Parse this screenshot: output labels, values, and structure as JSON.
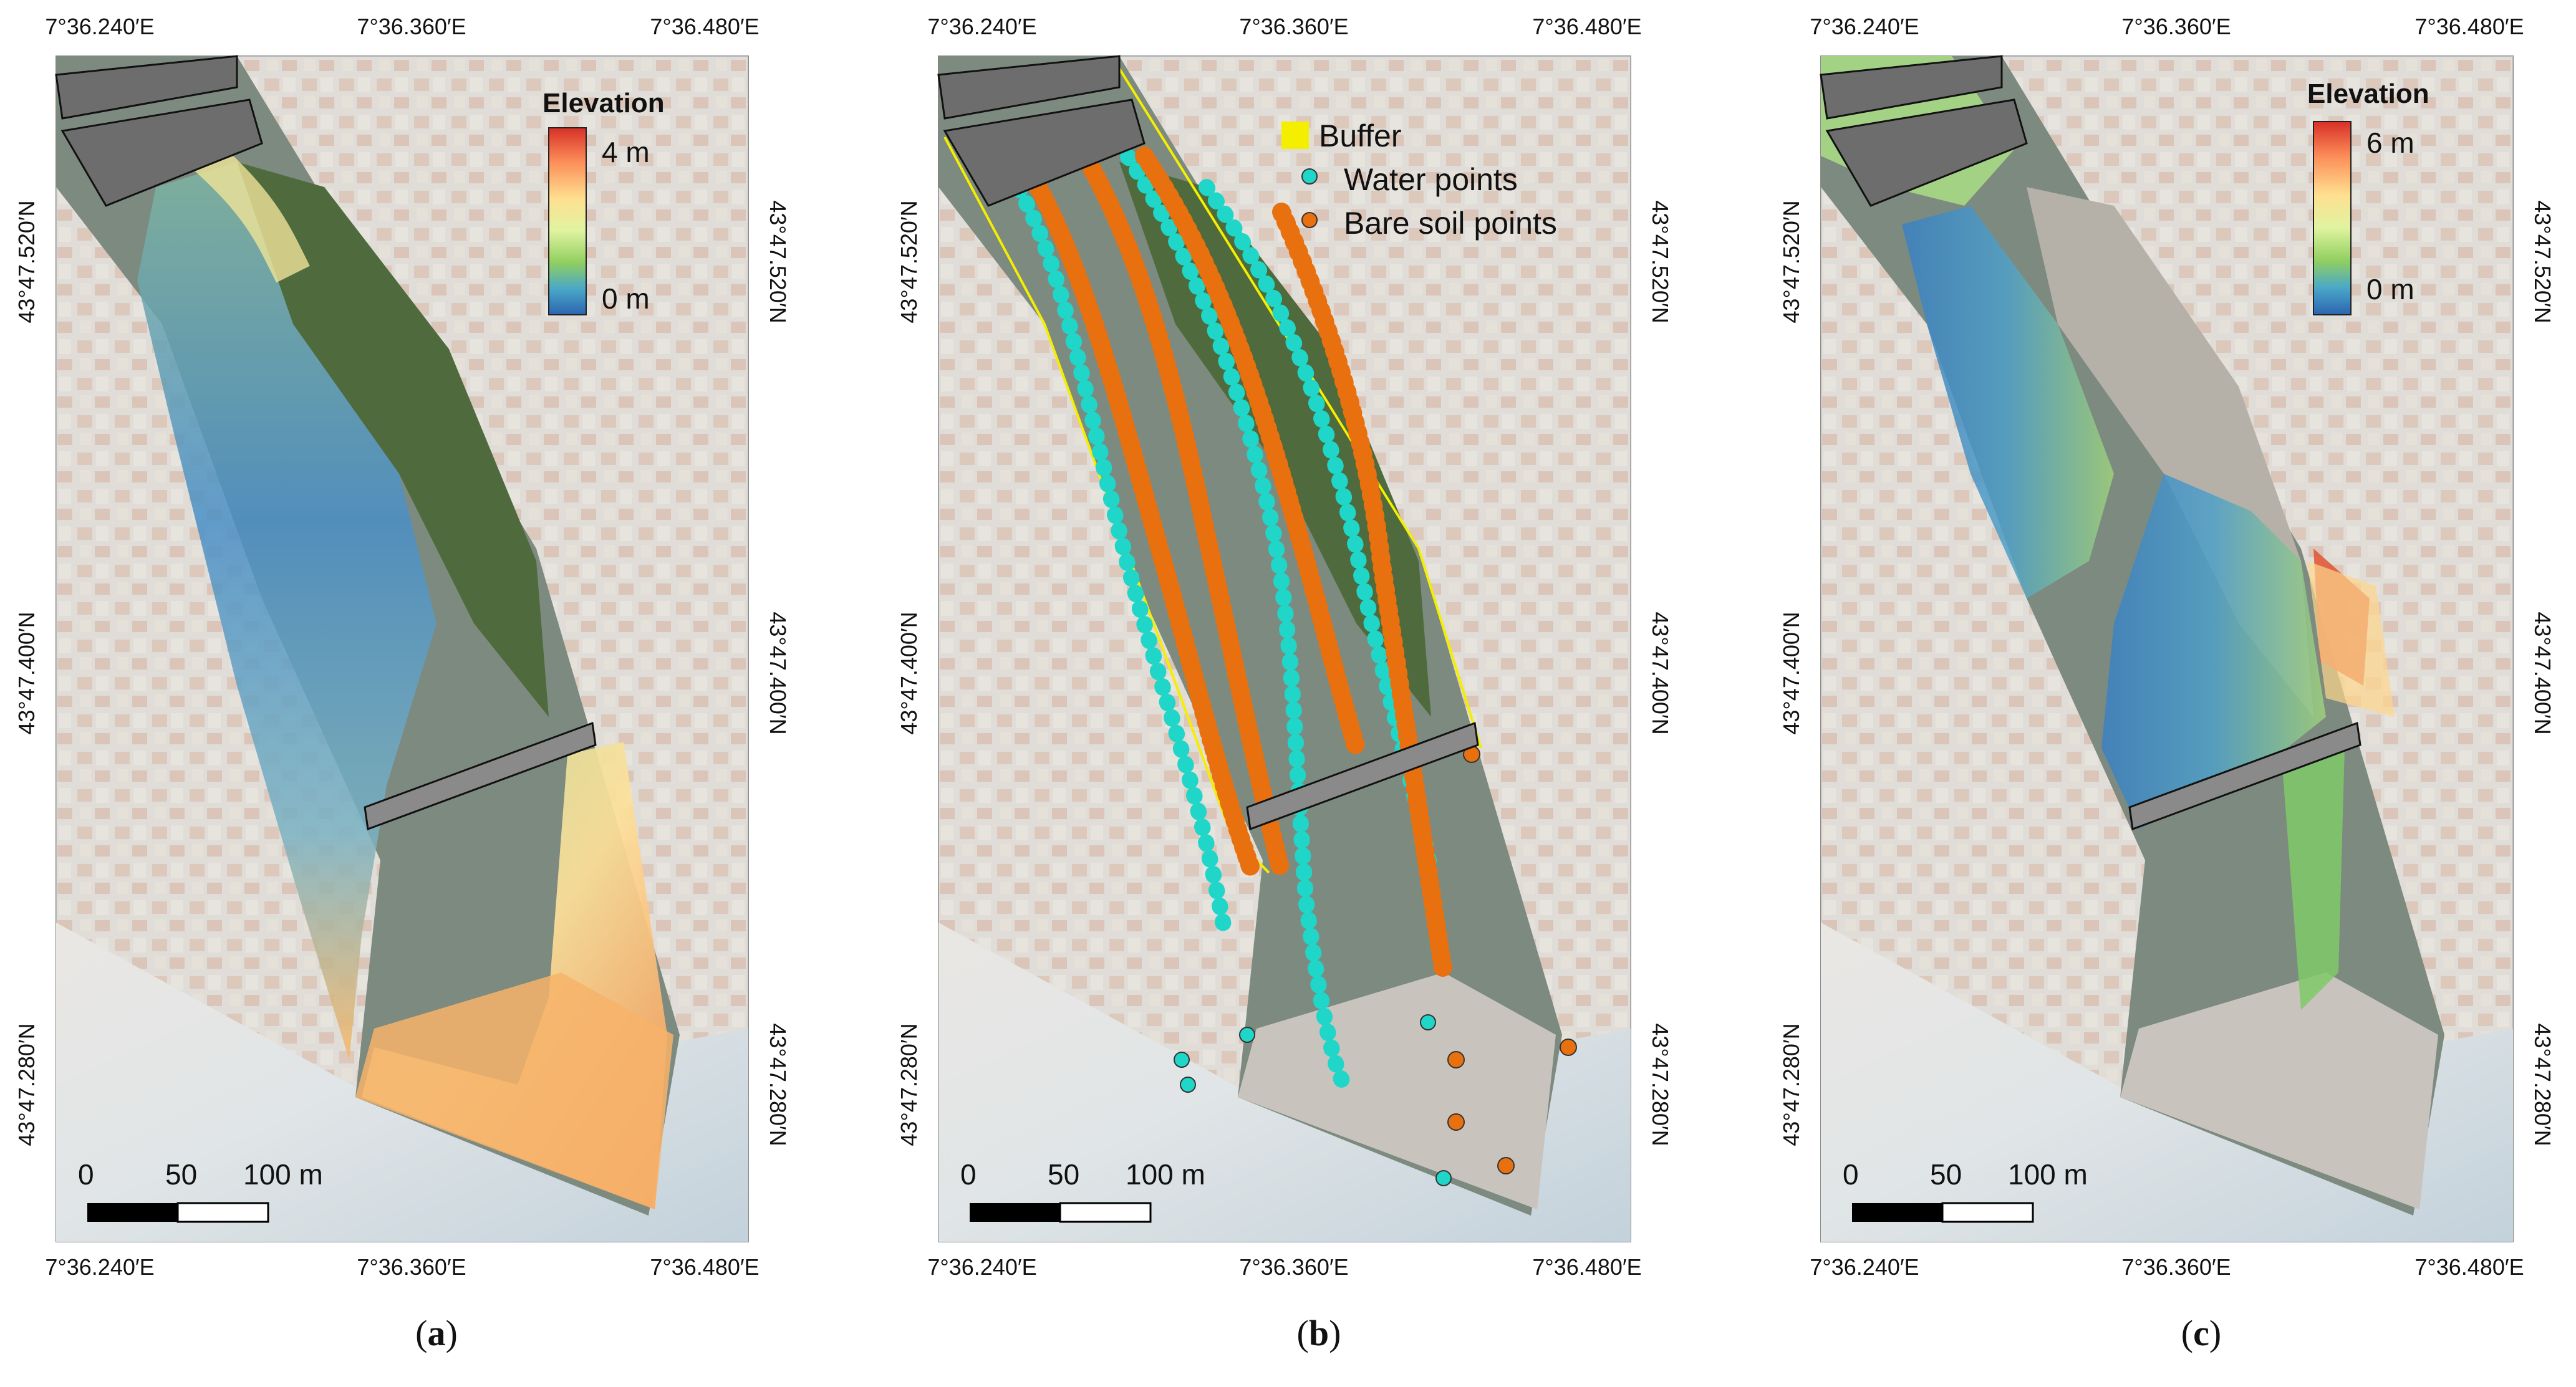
{
  "figure": {
    "panels": [
      {
        "id": "a",
        "caption_letter": "a",
        "coords": {
          "lon_top": [
            "7°36.240′E",
            "7°36.360′E",
            "7°36.480′E"
          ],
          "lon_bottom": [
            "7°36.240′E",
            "7°36.360′E",
            "7°36.480′E"
          ],
          "lat_left": [
            "43°47.520′N",
            "43°47.400′N",
            "43°47.280′N"
          ],
          "lat_right": [
            "43°47.520′N",
            "43°47.400′N",
            "43°47.280′N"
          ]
        },
        "legend": {
          "type": "colorbar",
          "title": "Elevation",
          "max_label": "4 m",
          "min_label": "0 m",
          "colors": [
            "#d73027",
            "#fc8d59",
            "#fee090",
            "#e0f3a0",
            "#91cf60",
            "#4aa8c8",
            "#2c64b0"
          ]
        },
        "scalebar": {
          "labels": [
            "0",
            "50",
            "100 m"
          ]
        },
        "overlay": "elevation"
      },
      {
        "id": "b",
        "caption_letter": "b",
        "coords": {
          "lon_top": [
            "7°36.240′E",
            "7°36.360′E",
            "7°36.480′E"
          ],
          "lon_bottom": [
            "7°36.240′E",
            "7°36.360′E",
            "7°36.480′E"
          ],
          "lat_left": [
            "43°47.520′N",
            "43°47.400′N",
            "43°47.280′N"
          ],
          "lat_right": [
            "43°47.520′N",
            "43°47.400′N",
            "43°47.280′N"
          ]
        },
        "legend": {
          "type": "symbols",
          "items": [
            {
              "label": "Buffer",
              "color": "#f4ee00",
              "shape": "square"
            },
            {
              "label": "Water points",
              "color": "#1fd6c8",
              "shape": "dot"
            },
            {
              "label": "Bare soil points",
              "color": "#e8700f",
              "shape": "dot"
            }
          ]
        },
        "scalebar": {
          "labels": [
            "0",
            "50",
            "100 m"
          ]
        },
        "overlay": "points"
      },
      {
        "id": "c",
        "caption_letter": "c",
        "coords": {
          "lon_top": [
            "7°36.240′E",
            "7°36.360′E",
            "7°36.480′E"
          ],
          "lon_bottom": [
            "7°36.240′E",
            "7°36.360′E",
            "7°36.480′E"
          ],
          "lat_left": [
            "43°47.520′N",
            "43°47.400′N",
            "43°47.280′N"
          ],
          "lat_right": [
            "43°47.520′N",
            "43°47.400′N",
            "43°47.280′N"
          ]
        },
        "legend": {
          "type": "colorbar",
          "title": "Elevation",
          "max_label": "6 m",
          "min_label": "0 m",
          "colors": [
            "#d73027",
            "#fc8d59",
            "#fee090",
            "#e0f3a0",
            "#91cf60",
            "#4aa8c8",
            "#2c64b0"
          ]
        },
        "scalebar": {
          "labels": [
            "0",
            "50",
            "100 m"
          ]
        },
        "overlay": "elevation2"
      }
    ],
    "colors": {
      "city": "#c9c3bb",
      "roof": "#c7a58f",
      "sea": "#a8bccb",
      "beach": "#dcd8d2",
      "vegetation": "#4f6a3c",
      "river": "#6f7a72",
      "gravel": "#b8b3aa",
      "bridge": "#555555"
    }
  }
}
